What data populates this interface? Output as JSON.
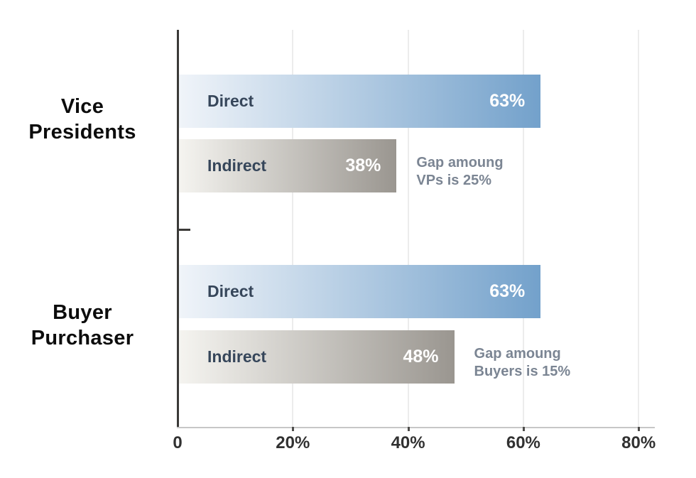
{
  "chart_data": {
    "type": "bar",
    "orientation": "horizontal",
    "title": "",
    "xlabel": "",
    "ylabel": "",
    "xlim": [
      0,
      80
    ],
    "x_tick_values": [
      0,
      20,
      40,
      60,
      80
    ],
    "x_tick_labels": [
      "0",
      "20%",
      "40%",
      "60%",
      "80%"
    ],
    "grid": "vertical-gridlines-on",
    "legend": "labels-inside-bars",
    "groups": [
      {
        "category": "Vice\nPresidents",
        "bars": [
          {
            "series": "Direct",
            "value": 63,
            "value_label": "63%",
            "color": "blue"
          },
          {
            "series": "Indirect",
            "value": 38,
            "value_label": "38%",
            "color": "gray"
          }
        ],
        "annotation": "Gap amoung\nVPs is 25%"
      },
      {
        "category": "Buyer\nPurchaser",
        "bars": [
          {
            "series": "Direct",
            "value": 63,
            "value_label": "63%",
            "color": "blue"
          },
          {
            "series": "Indirect",
            "value": 48,
            "value_label": "48%",
            "color": "gray"
          }
        ],
        "annotation": "Gap amoung\nBuyers is 15%"
      }
    ]
  },
  "colors": {
    "bar_blue_start": "#f0f4f9",
    "bar_blue_end": "#73a1cb",
    "bar_gray_start": "#f5f4f0",
    "bar_gray_end": "#9a9690",
    "series_label": "#36465a",
    "value_label": "#ffffff",
    "annotation": "#7b8593",
    "category_label": "#0c0c0c",
    "axis_line": "#3b3a38",
    "baseline": "#c7c7c7",
    "gridline": "#ececec",
    "tick_stub": "#4e4d4b",
    "tick_label": "#313131"
  }
}
